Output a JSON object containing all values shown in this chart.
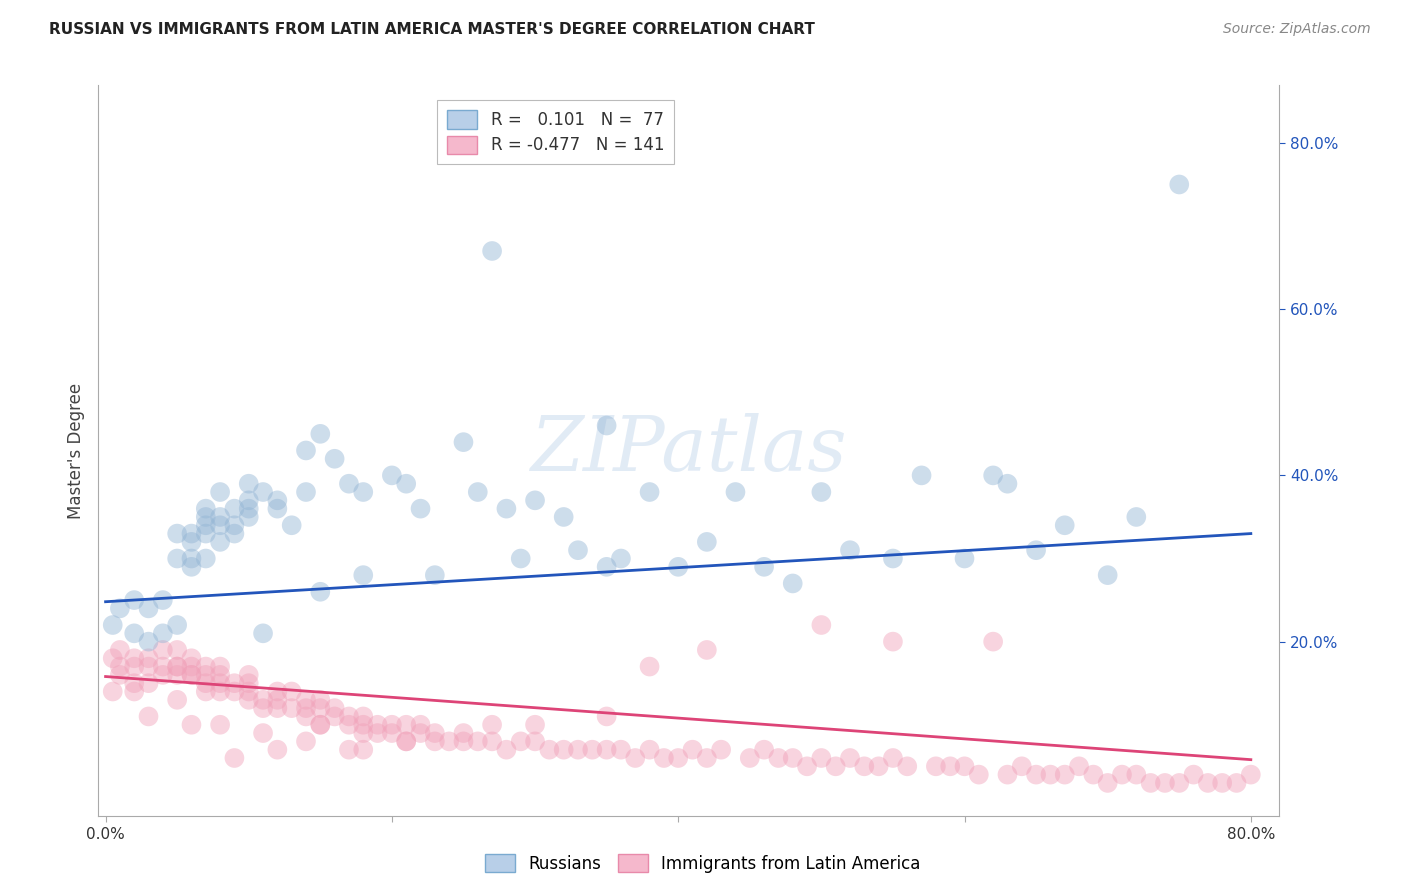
{
  "title": "RUSSIAN VS IMMIGRANTS FROM LATIN AMERICA MASTER'S DEGREE CORRELATION CHART",
  "source": "Source: ZipAtlas.com",
  "ylabel": "Master's Degree",
  "xlim": [
    -0.005,
    0.82
  ],
  "ylim": [
    -0.01,
    0.87
  ],
  "xtick_labels": [
    "0.0%",
    "",
    "",
    "",
    "80.0%"
  ],
  "xtick_vals": [
    0.0,
    0.2,
    0.4,
    0.6,
    0.8
  ],
  "ytick_labels_right": [
    "20.0%",
    "40.0%",
    "60.0%",
    "80.0%"
  ],
  "ytick_vals_right": [
    0.2,
    0.4,
    0.6,
    0.8
  ],
  "blue_scatter_x": [
    0.005,
    0.01,
    0.02,
    0.02,
    0.03,
    0.03,
    0.04,
    0.04,
    0.05,
    0.05,
    0.05,
    0.06,
    0.06,
    0.06,
    0.06,
    0.07,
    0.07,
    0.07,
    0.07,
    0.07,
    0.08,
    0.08,
    0.08,
    0.08,
    0.09,
    0.09,
    0.09,
    0.1,
    0.1,
    0.1,
    0.1,
    0.11,
    0.11,
    0.12,
    0.12,
    0.13,
    0.14,
    0.14,
    0.15,
    0.15,
    0.16,
    0.17,
    0.18,
    0.18,
    0.2,
    0.21,
    0.22,
    0.23,
    0.25,
    0.26,
    0.27,
    0.28,
    0.29,
    0.3,
    0.32,
    0.33,
    0.35,
    0.35,
    0.36,
    0.38,
    0.4,
    0.42,
    0.44,
    0.46,
    0.48,
    0.5,
    0.52,
    0.55,
    0.57,
    0.6,
    0.62,
    0.63,
    0.65,
    0.67,
    0.7,
    0.72,
    0.75
  ],
  "blue_scatter_y": [
    0.22,
    0.24,
    0.21,
    0.25,
    0.2,
    0.24,
    0.21,
    0.25,
    0.3,
    0.33,
    0.22,
    0.33,
    0.32,
    0.3,
    0.29,
    0.35,
    0.33,
    0.3,
    0.34,
    0.36,
    0.35,
    0.32,
    0.34,
    0.38,
    0.36,
    0.33,
    0.34,
    0.37,
    0.35,
    0.39,
    0.36,
    0.38,
    0.21,
    0.37,
    0.36,
    0.34,
    0.38,
    0.43,
    0.45,
    0.26,
    0.42,
    0.39,
    0.38,
    0.28,
    0.4,
    0.39,
    0.36,
    0.28,
    0.44,
    0.38,
    0.67,
    0.36,
    0.3,
    0.37,
    0.35,
    0.31,
    0.29,
    0.46,
    0.3,
    0.38,
    0.29,
    0.32,
    0.38,
    0.29,
    0.27,
    0.38,
    0.31,
    0.3,
    0.4,
    0.3,
    0.4,
    0.39,
    0.31,
    0.34,
    0.28,
    0.35,
    0.75
  ],
  "pink_scatter_x": [
    0.005,
    0.005,
    0.01,
    0.01,
    0.01,
    0.02,
    0.02,
    0.02,
    0.02,
    0.03,
    0.03,
    0.03,
    0.04,
    0.04,
    0.04,
    0.05,
    0.05,
    0.05,
    0.05,
    0.06,
    0.06,
    0.06,
    0.06,
    0.07,
    0.07,
    0.07,
    0.07,
    0.08,
    0.08,
    0.08,
    0.08,
    0.09,
    0.09,
    0.1,
    0.1,
    0.1,
    0.1,
    0.11,
    0.11,
    0.12,
    0.12,
    0.12,
    0.13,
    0.13,
    0.14,
    0.14,
    0.14,
    0.15,
    0.15,
    0.15,
    0.16,
    0.16,
    0.17,
    0.17,
    0.18,
    0.18,
    0.18,
    0.19,
    0.19,
    0.2,
    0.21,
    0.21,
    0.22,
    0.22,
    0.23,
    0.24,
    0.25,
    0.25,
    0.26,
    0.27,
    0.28,
    0.29,
    0.3,
    0.31,
    0.32,
    0.33,
    0.34,
    0.35,
    0.36,
    0.37,
    0.38,
    0.39,
    0.4,
    0.41,
    0.42,
    0.43,
    0.45,
    0.46,
    0.47,
    0.48,
    0.49,
    0.5,
    0.51,
    0.52,
    0.53,
    0.54,
    0.55,
    0.56,
    0.58,
    0.59,
    0.6,
    0.61,
    0.63,
    0.64,
    0.65,
    0.66,
    0.67,
    0.68,
    0.69,
    0.7,
    0.71,
    0.72,
    0.73,
    0.74,
    0.75,
    0.76,
    0.77,
    0.78,
    0.79,
    0.8,
    0.62,
    0.5,
    0.55,
    0.42,
    0.38,
    0.35,
    0.3,
    0.27,
    0.23,
    0.2,
    0.17,
    0.14,
    0.11,
    0.08,
    0.05,
    0.03,
    0.06,
    0.09,
    0.12,
    0.15,
    0.18,
    0.21
  ],
  "pink_scatter_y": [
    0.14,
    0.18,
    0.16,
    0.19,
    0.17,
    0.17,
    0.15,
    0.18,
    0.14,
    0.17,
    0.15,
    0.18,
    0.17,
    0.19,
    0.16,
    0.17,
    0.16,
    0.19,
    0.17,
    0.16,
    0.18,
    0.17,
    0.16,
    0.15,
    0.16,
    0.17,
    0.14,
    0.15,
    0.14,
    0.16,
    0.17,
    0.14,
    0.15,
    0.13,
    0.15,
    0.14,
    0.16,
    0.13,
    0.12,
    0.12,
    0.14,
    0.13,
    0.12,
    0.14,
    0.11,
    0.13,
    0.12,
    0.1,
    0.12,
    0.13,
    0.11,
    0.12,
    0.1,
    0.11,
    0.1,
    0.09,
    0.11,
    0.1,
    0.09,
    0.09,
    0.1,
    0.08,
    0.09,
    0.1,
    0.09,
    0.08,
    0.08,
    0.09,
    0.08,
    0.08,
    0.07,
    0.08,
    0.08,
    0.07,
    0.07,
    0.07,
    0.07,
    0.07,
    0.07,
    0.06,
    0.07,
    0.06,
    0.06,
    0.07,
    0.06,
    0.07,
    0.06,
    0.07,
    0.06,
    0.06,
    0.05,
    0.06,
    0.05,
    0.06,
    0.05,
    0.05,
    0.06,
    0.05,
    0.05,
    0.05,
    0.05,
    0.04,
    0.04,
    0.05,
    0.04,
    0.04,
    0.04,
    0.05,
    0.04,
    0.03,
    0.04,
    0.04,
    0.03,
    0.03,
    0.03,
    0.04,
    0.03,
    0.03,
    0.03,
    0.04,
    0.2,
    0.22,
    0.2,
    0.19,
    0.17,
    0.11,
    0.1,
    0.1,
    0.08,
    0.1,
    0.07,
    0.08,
    0.09,
    0.1,
    0.13,
    0.11,
    0.1,
    0.06,
    0.07,
    0.1,
    0.07,
    0.08
  ],
  "blue_line_x": [
    0.0,
    0.8
  ],
  "blue_line_y": [
    0.248,
    0.33
  ],
  "pink_line_x": [
    0.0,
    0.8
  ],
  "pink_line_y": [
    0.158,
    0.058
  ],
  "blue_dot_color": "#92b4d4",
  "pink_dot_color": "#f0a0b8",
  "blue_line_color": "#2255bb",
  "pink_line_color": "#dd4477",
  "scatter_size": 200,
  "scatter_alpha": 0.45,
  "watermark": "ZIPatlas",
  "bg_color": "#ffffff",
  "grid_color": "#cccccc",
  "grid_style": "--",
  "title_fontsize": 11,
  "source_fontsize": 10
}
